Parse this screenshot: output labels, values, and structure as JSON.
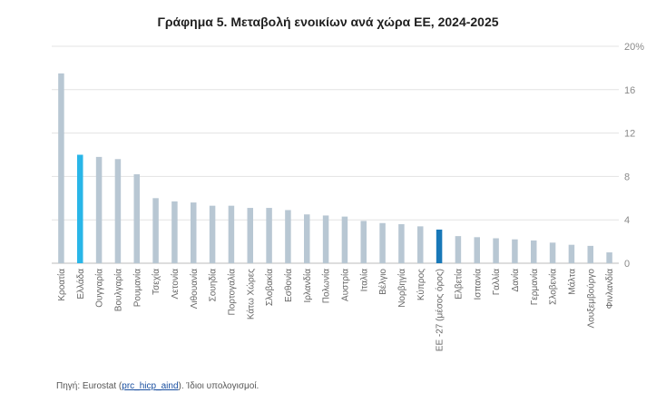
{
  "chart_data": {
    "type": "bar",
    "title": "Γράφημα 5. Μεταβολή ενοικίων ανά χώρα ΕΕ, 2024-2025",
    "xlabel": "",
    "ylabel": "",
    "ylim": [
      0,
      20
    ],
    "yticks": [
      "0",
      "4",
      "8",
      "12",
      "16",
      "20%"
    ],
    "y_axis_position": "right",
    "grid": true,
    "categories": [
      "Κροατία",
      "Ελλάδα",
      "Ουγγαρία",
      "Βουλγαρία",
      "Ρουμανία",
      "Τσεχία",
      "Λετονία",
      "Λιθουανία",
      "Σουηδία",
      "Πορτογαλία",
      "Κάτω Χώρες",
      "Σλοβακία",
      "Εσθονία",
      "Ιρλανδία",
      "Πολωνία",
      "Αυστρία",
      "Ιταλία",
      "Βέλγιο",
      "Νορβηγία",
      "Κύπρος",
      "ΕΕ -27 (μέσος όρος)",
      "Ελβετία",
      "Ισπανία",
      "Γαλλία",
      "Δανία",
      "Γερμανία",
      "Σλοβενία",
      "Μάλτα",
      "Λουξεμβούργο",
      "Φινλανδία"
    ],
    "values": [
      17.5,
      10.0,
      9.8,
      9.6,
      8.2,
      6.0,
      5.7,
      5.6,
      5.3,
      5.3,
      5.1,
      5.1,
      4.9,
      4.5,
      4.4,
      4.3,
      3.9,
      3.7,
      3.6,
      3.4,
      3.1,
      2.5,
      2.4,
      2.3,
      2.2,
      2.1,
      1.9,
      1.7,
      1.6,
      1.0
    ],
    "colors": {
      "default": "#b8c7d3",
      "Ελλάδα": "#29b6e8",
      "ΕΕ -27 (μέσος όρος)": "#1878b8",
      "grid": "#e3e3e3",
      "axis": "#bbbbbb"
    }
  },
  "source": {
    "prefix": "Πηγή: Eurostat (",
    "link": "prc_hicp_aind",
    "suffix": "). Ίδιοι υπολογισμοί."
  }
}
